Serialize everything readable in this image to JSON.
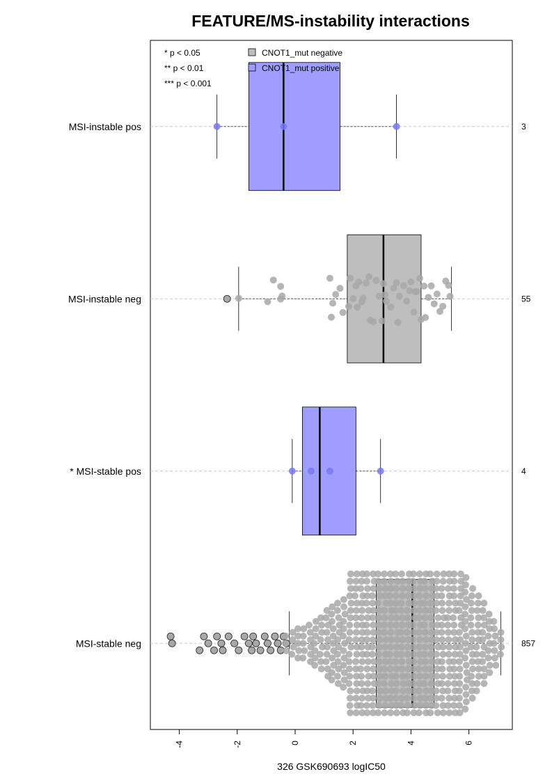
{
  "chart_data": {
    "type": "boxplot-beeswarm",
    "title": "FEATURE/MS-instability interactions",
    "xlabel": "326 GSK690693 logIC50",
    "xlim": [
      -5.0,
      7.5
    ],
    "xticks": [
      -4,
      -2,
      0,
      2,
      4,
      6
    ],
    "xtick_labels": [
      "-4",
      "-2",
      "0",
      "2",
      "4",
      "6"
    ],
    "significance_legend": [
      "* p < 0.05",
      "** p < 0.01",
      "*** p < 0.001"
    ],
    "legend": [
      {
        "label": "CNOT1_mut negative",
        "color": "#bebebe"
      },
      {
        "label": "CNOT1_mut positive",
        "color": "#9e9eff"
      }
    ],
    "colors": {
      "negative_box": "#bebebe",
      "positive_box": "#9e9eff",
      "negative_point": "#a8a8a8",
      "positive_point": "#7878f0"
    },
    "groups": [
      {
        "label": "MSI-instable pos",
        "count": "3",
        "status": "positive",
        "whisker_low": -2.7,
        "q1": -1.6,
        "median": -0.4,
        "q3": 1.55,
        "whisker_high": 3.5,
        "points": [
          -2.7,
          -0.4,
          3.5
        ],
        "outliers": []
      },
      {
        "label": "MSI-instable neg",
        "count": "55",
        "status": "negative",
        "whisker_low": -1.95,
        "q1": 1.8,
        "median": 3.05,
        "q3": 4.35,
        "whisker_high": 5.4,
        "points": [
          -1.95,
          -0.95,
          -0.75,
          -0.5,
          -0.45,
          -0.5,
          1.2,
          1.25,
          1.3,
          1.4,
          1.55,
          1.65,
          1.85,
          1.9,
          2.0,
          2.1,
          2.15,
          2.2,
          2.3,
          2.35,
          2.45,
          2.55,
          2.6,
          2.7,
          2.8,
          2.9,
          3.0,
          3.05,
          3.1,
          3.15,
          3.3,
          3.4,
          3.5,
          3.55,
          3.6,
          3.75,
          3.85,
          3.95,
          4.0,
          4.1,
          4.15,
          4.2,
          4.3,
          4.35,
          4.45,
          4.5,
          4.6,
          4.7,
          4.8,
          4.9,
          5.0,
          5.1,
          5.2,
          5.3,
          5.35
        ],
        "outliers": [
          -2.35
        ]
      },
      {
        "label": "* MSI-stable pos",
        "count": "4",
        "status": "positive",
        "whisker_low": -0.1,
        "q1": 0.25,
        "median": 0.85,
        "q3": 2.1,
        "whisker_high": 2.95,
        "points": [
          -0.1,
          0.55,
          1.2,
          2.95
        ],
        "outliers": []
      },
      {
        "label": "MSI-stable neg",
        "count": "857",
        "status": "negative",
        "whisker_low": -0.2,
        "q1": 2.8,
        "median": 4.05,
        "q3": 4.8,
        "whisker_high": 7.1,
        "outliers": [
          -4.3,
          -4.25,
          -3.3,
          -3.15,
          -3.0,
          -2.8,
          -2.7,
          -2.55,
          -2.5,
          -2.3,
          -2.1,
          -1.95,
          -1.75,
          -1.6,
          -1.5,
          -1.45,
          -1.35,
          -1.2,
          -1.05,
          -0.95,
          -0.85,
          -0.7,
          -0.6,
          -0.5,
          -0.4,
          -0.3
        ]
      }
    ]
  }
}
